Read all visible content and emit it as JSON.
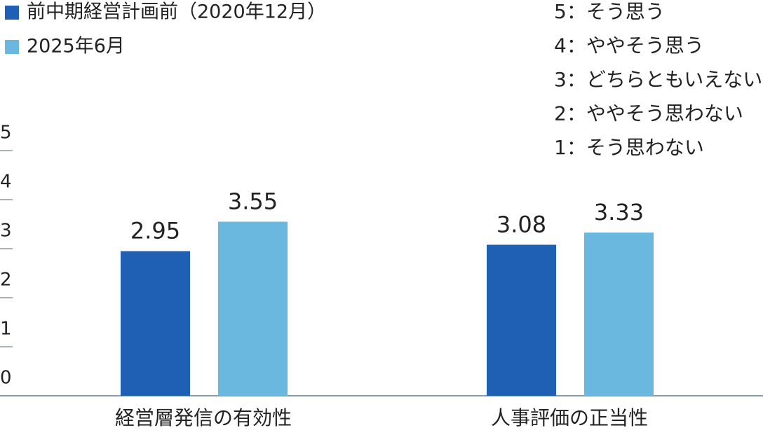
{
  "chart_data": {
    "type": "bar",
    "categories": [
      "経営層発信の有効性",
      "人事評価の正当性"
    ],
    "series": [
      {
        "name": "前中期経営計画前（2020年12月）",
        "color": "#1f5fb4",
        "values": [
          2.95,
          3.08
        ]
      },
      {
        "name": "2025年6月",
        "color": "#6ab7e0",
        "values": [
          3.55,
          3.33
        ]
      }
    ],
    "ylim": [
      0,
      5
    ],
    "yticks": [
      0,
      1,
      2,
      3,
      4,
      5
    ],
    "annotations": [
      "5：そう思う",
      "4：ややそう思う",
      "3：どちらともいえない",
      "2：ややそう思わない",
      "1：そう思わない"
    ]
  }
}
